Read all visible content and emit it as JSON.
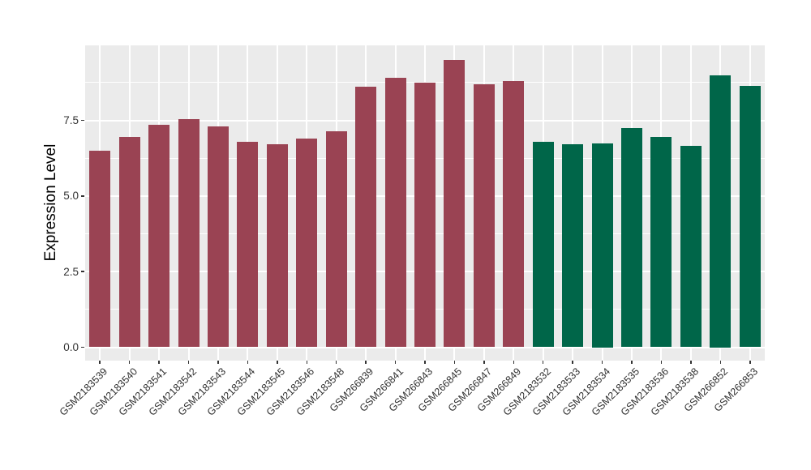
{
  "figure": {
    "background": "#FFFFFF"
  },
  "chart_data": {
    "type": "bar",
    "title": "",
    "xlabel": "",
    "ylabel": "Expression Level",
    "categories": [
      "GSM2183539",
      "GSM2183540",
      "GSM2183541",
      "GSM2183542",
      "GSM2183543",
      "GSM2183544",
      "GSM2183545",
      "GSM2183546",
      "GSM2183548",
      "GSM266839",
      "GSM266841",
      "GSM266843",
      "GSM266845",
      "GSM266847",
      "GSM266849",
      "GSM2183532",
      "GSM2183533",
      "GSM2183534",
      "GSM2183535",
      "GSM2183536",
      "GSM2183538",
      "GSM266852",
      "GSM266853"
    ],
    "values": [
      6.5,
      6.95,
      7.35,
      7.55,
      7.3,
      6.8,
      6.7,
      6.9,
      7.15,
      8.6,
      8.9,
      8.75,
      9.5,
      8.7,
      8.8,
      6.8,
      6.7,
      6.75,
      7.25,
      6.95,
      6.65,
      9.0,
      8.65
    ],
    "bar_colors": [
      "#9A4353",
      "#9A4353",
      "#9A4353",
      "#9A4353",
      "#9A4353",
      "#9A4353",
      "#9A4353",
      "#9A4353",
      "#9A4353",
      "#9A4353",
      "#9A4353",
      "#9A4353",
      "#9A4353",
      "#9A4353",
      "#9A4353",
      "#006649",
      "#006649",
      "#006649",
      "#006649",
      "#006649",
      "#006649",
      "#006649",
      "#006649"
    ],
    "color_palette": {
      "maroon_group": "#9A4353",
      "green_group": "#006649"
    },
    "ylim": [
      0,
      9.97
    ],
    "yticks": [
      0.0,
      2.5,
      5.0,
      7.5
    ],
    "ytick_labels": [
      "0.0",
      "2.5",
      "5.0",
      "7.5"
    ],
    "minor_gridlines": [
      1.25,
      3.75,
      6.25,
      8.75
    ],
    "grid": true,
    "legend_position": "none",
    "panel_background": "#EBEBEB",
    "gridline_color": "#FFFFFF",
    "bar_width_fraction": 0.71
  }
}
